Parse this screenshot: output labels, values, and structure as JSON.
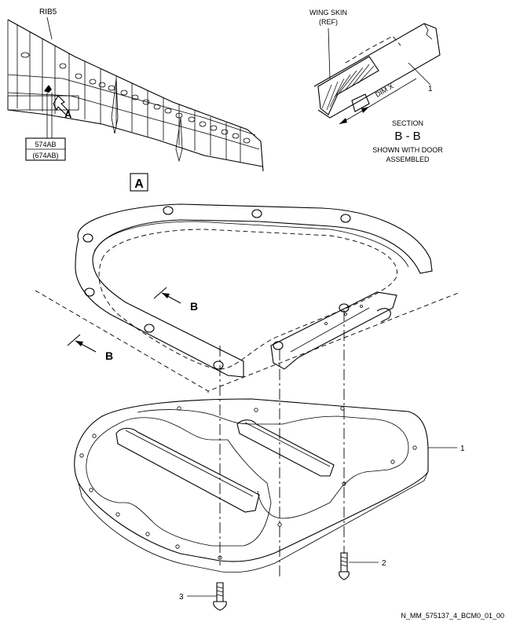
{
  "colors": {
    "line": "#000000",
    "background": "#ffffff"
  },
  "wing_view": {
    "rib_label": "RIB5",
    "view_callout": "A",
    "panel_ref_primary": "574AB",
    "panel_ref_alternate": "(674AB)"
  },
  "section_view": {
    "wing_skin_label": "WING SKIN",
    "wing_skin_ref": "(REF)",
    "dim_label": "DIM X",
    "item_number": "1",
    "section_title": "SECTION",
    "section_name": "B - B",
    "note_line1": "SHOWN WITH DOOR",
    "note_line2": "ASSEMBLED"
  },
  "detail_view": {
    "view_label": "A",
    "section_arrow_upper": "B",
    "section_arrow_lower": "B",
    "callouts": [
      {
        "number": "1",
        "part": "door"
      },
      {
        "number": "2",
        "part": "screw"
      },
      {
        "number": "3",
        "part": "screw"
      }
    ]
  },
  "drawing_id": "N_MM_575137_4_BCM0_01_00"
}
